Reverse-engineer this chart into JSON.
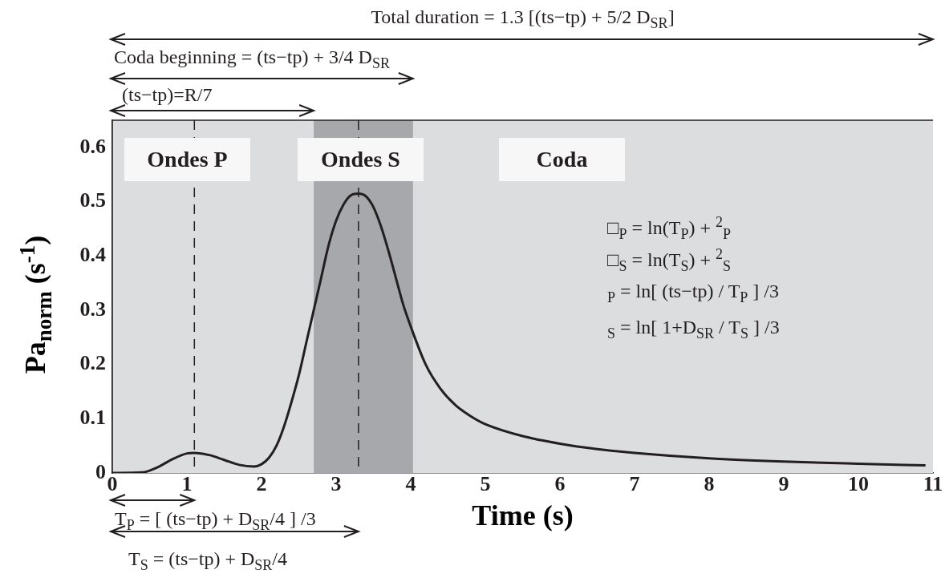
{
  "chart_data": {
    "type": "line",
    "xlabel": "Time (s)",
    "ylabel": "Pa$_{norm}$ (s$^{-1}$)",
    "x": [
      0,
      0.4,
      0.6,
      0.8,
      1.0,
      1.1,
      1.3,
      1.5,
      1.7,
      1.9,
      2.0,
      2.1,
      2.2,
      2.3,
      2.4,
      2.5,
      2.6,
      2.7,
      2.8,
      2.9,
      3.0,
      3.1,
      3.2,
      3.3,
      3.4,
      3.5,
      3.6,
      3.7,
      3.8,
      3.9,
      4.0,
      4.2,
      4.4,
      4.6,
      4.8,
      5.0,
      5.5,
      6.0,
      6.5,
      7.0,
      8.0,
      9.0,
      10.0,
      10.9
    ],
    "series": [
      {
        "color": "#231f20",
        "values": [
          0,
          0.001,
          0.01,
          0.025,
          0.036,
          0.037,
          0.033,
          0.024,
          0.015,
          0.012,
          0.016,
          0.028,
          0.05,
          0.085,
          0.13,
          0.18,
          0.24,
          0.3,
          0.36,
          0.42,
          0.465,
          0.495,
          0.512,
          0.515,
          0.51,
          0.49,
          0.455,
          0.41,
          0.36,
          0.31,
          0.27,
          0.2,
          0.155,
          0.125,
          0.105,
          0.09,
          0.068,
          0.054,
          0.044,
          0.037,
          0.027,
          0.021,
          0.017,
          0.014
        ]
      }
    ],
    "xlim": [
      0,
      11
    ],
    "xticks": [
      0,
      1,
      2,
      3,
      4,
      5,
      6,
      7,
      8,
      9,
      10,
      11
    ],
    "ylim": [
      0,
      0.65
    ],
    "yticks": [
      0,
      0.1,
      0.2,
      0.3,
      0.4,
      0.5,
      0.6
    ],
    "grid": false,
    "legend": false,
    "marker": "none",
    "line_style": "solid",
    "bands": [
      {
        "axis": "x",
        "from": 2.7,
        "to": 4.03,
        "color": "#a7a8ab"
      }
    ],
    "ref_lines": [
      {
        "axis": "x",
        "value": 1.1,
        "color": "#231f20",
        "line_style": "dashed"
      },
      {
        "axis": "x",
        "value": 3.3,
        "color": "#231f20",
        "line_style": "dashed"
      }
    ],
    "annotations": [
      "Total duration = 1.3 [(ts−tp) + 5/2 D$_{SR}$]",
      "Coda beginning = (ts−tp) + 3/4 D$_{SR}$",
      "(ts−tp)=R/7",
      "Ondes P",
      "Ondes S",
      "Coda",
      "□$_{P}$ = ln(T$_{P}$) + $^{2}$$_{P}$",
      "□$_{S}$ = ln(T$_{S}$) + $^{2}$$_{S}$",
      "$_{P}$ = ln[ (ts−tp) / T$_{P}$ ] /3",
      "$_{S}$ = ln[ 1+D$_{SR}$ / T$_{S}$ ] /3",
      "T$_{P}$ = [ (ts−tp) + D$_{SR}$/4 ] /3",
      "T$_{S}$ = (ts−tp) + D$_{SR}$/4"
    ]
  }
}
